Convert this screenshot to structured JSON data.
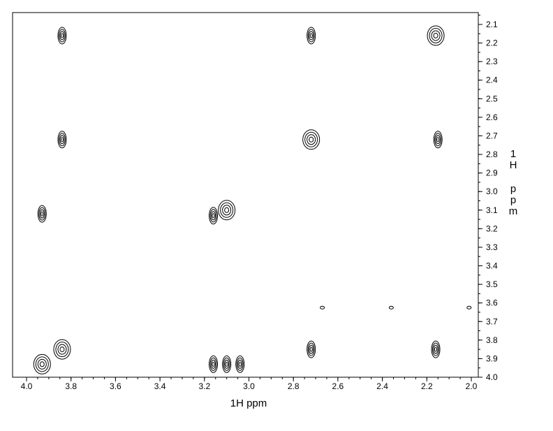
{
  "chart_data": {
    "type": "scatter",
    "subtype": "2D NMR contour plot (COSY)",
    "title": "",
    "xlabel": "1H ppm",
    "ylabel": "1H ppm",
    "x_axis": {
      "min": 2.0,
      "max": 4.0,
      "reversed": true,
      "ticks": [
        "4.0",
        "3.8",
        "3.6",
        "3.4",
        "3.2",
        "3.0",
        "2.8",
        "2.6",
        "2.4",
        "2.2",
        "2.0"
      ]
    },
    "y_axis": {
      "min": 2.05,
      "max": 4.0,
      "reversed": true,
      "position": "right",
      "ticks": [
        "2.1",
        "2.2",
        "2.3",
        "2.4",
        "2.5",
        "2.6",
        "2.7",
        "2.8",
        "2.9",
        "3.0",
        "3.1",
        "3.2",
        "3.3",
        "3.4",
        "3.5",
        "3.6",
        "3.7",
        "3.8",
        "3.9",
        "4.0"
      ]
    },
    "grid": false,
    "legend": "none",
    "peaks": [
      {
        "x": 3.84,
        "y": 2.16,
        "kind": "cross"
      },
      {
        "x": 2.72,
        "y": 2.16,
        "kind": "cross"
      },
      {
        "x": 2.16,
        "y": 2.16,
        "kind": "diagonal"
      },
      {
        "x": 3.84,
        "y": 2.72,
        "kind": "cross"
      },
      {
        "x": 2.72,
        "y": 2.72,
        "kind": "diagonal"
      },
      {
        "x": 2.15,
        "y": 2.72,
        "kind": "cross"
      },
      {
        "x": 3.93,
        "y": 3.12,
        "kind": "cross"
      },
      {
        "x": 3.1,
        "y": 3.1,
        "kind": "diagonal"
      },
      {
        "x": 3.16,
        "y": 3.13,
        "kind": "cross"
      },
      {
        "x": 3.84,
        "y": 3.85,
        "kind": "diagonal"
      },
      {
        "x": 2.72,
        "y": 3.85,
        "kind": "cross"
      },
      {
        "x": 2.16,
        "y": 3.85,
        "kind": "cross"
      },
      {
        "x": 3.93,
        "y": 3.93,
        "kind": "diagonal"
      },
      {
        "x": 3.1,
        "y": 3.93,
        "kind": "cross"
      },
      {
        "x": 3.04,
        "y": 3.93,
        "kind": "cross"
      },
      {
        "x": 3.16,
        "y": 3.93,
        "kind": "cross"
      },
      {
        "x": 2.36,
        "y": 3.625,
        "kind": "noise"
      },
      {
        "x": 2.67,
        "y": 3.625,
        "kind": "noise"
      },
      {
        "x": 2.01,
        "y": 3.625,
        "kind": "noise"
      }
    ]
  }
}
